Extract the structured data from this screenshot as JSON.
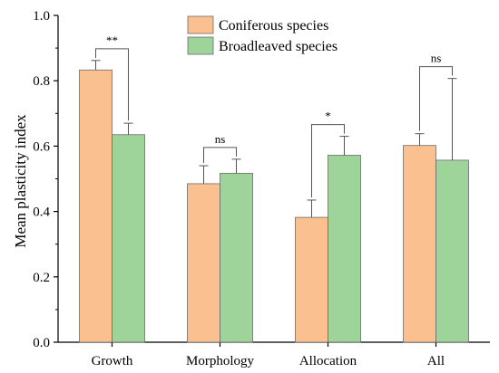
{
  "chart_data": {
    "type": "bar",
    "title": "",
    "xlabel": "",
    "ylabel": "Mean plasticity index",
    "ylim": [
      0,
      1.0
    ],
    "yticks": [
      0.0,
      0.2,
      0.4,
      0.6,
      0.8,
      1.0
    ],
    "ytick_labels": [
      "0.0",
      "0.2",
      "0.4",
      "0.6",
      "0.8",
      "1.0"
    ],
    "categories": [
      "Growth",
      "Morphology",
      "Allocation",
      "All"
    ],
    "series": [
      {
        "name": "Coniferous species",
        "color": "#FAC090",
        "values": [
          0.833,
          0.485,
          0.382,
          0.602
        ],
        "error_upper": [
          0.862,
          0.54,
          0.435,
          0.638
        ]
      },
      {
        "name": "Broadleaved species",
        "color": "#9ED39A",
        "values": [
          0.635,
          0.517,
          0.572,
          0.557
        ],
        "error_upper": [
          0.67,
          0.56,
          0.63,
          0.807
        ]
      }
    ],
    "significance": [
      "**",
      "ns",
      "*",
      "ns"
    ],
    "legend_position": "top-center",
    "grid": false
  }
}
